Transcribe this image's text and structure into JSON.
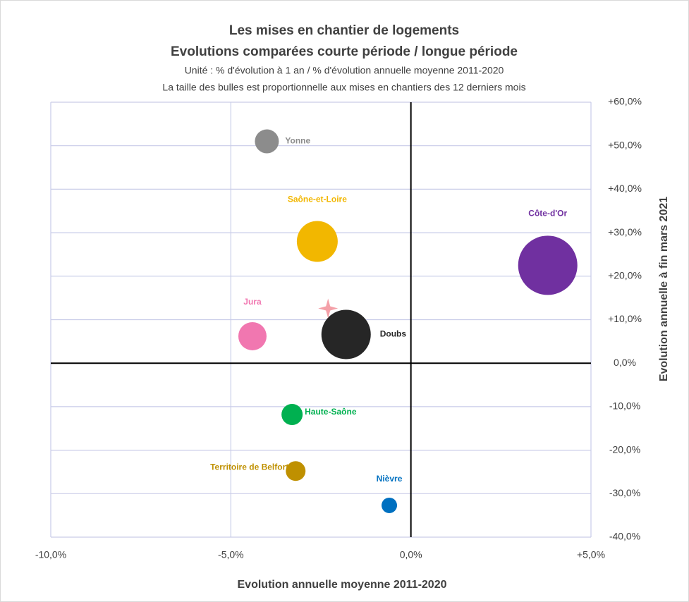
{
  "chart_data": {
    "type": "bubble",
    "title": "Les mises en chantier de logements",
    "subtitle": "Evolutions comparées courte période / longue période",
    "notes": [
      "Unité : % d'évolution à 1 an / % d'évolution annuelle moyenne 2011-2020",
      "La taille des bulles est proportionnelle aux mises en chantiers des 12 derniers mois"
    ],
    "x_label": "Evolution annuelle moyenne 2011-2020",
    "y_label": "Evolution annuelle à fin mars 2021",
    "xlim": [
      -10,
      5
    ],
    "ylim": [
      -40,
      60
    ],
    "xticks": [
      {
        "value": -10,
        "label": "-10,0%"
      },
      {
        "value": -5,
        "label": "-5,0%"
      },
      {
        "value": 0,
        "label": "0,0%"
      },
      {
        "value": 5,
        "label": "+5,0%"
      }
    ],
    "yticks": [
      {
        "value": -40,
        "label": "-40,0%"
      },
      {
        "value": -30,
        "label": "-30,0%"
      },
      {
        "value": -20,
        "label": "-20,0%"
      },
      {
        "value": -10,
        "label": "-10,0%"
      },
      {
        "value": 0,
        "label": "0,0%"
      },
      {
        "value": 10,
        "label": "+10,0%"
      },
      {
        "value": 20,
        "label": "+20,0%"
      },
      {
        "value": 30,
        "label": "+30,0%"
      },
      {
        "value": 40,
        "label": "+40,0%"
      },
      {
        "value": 50,
        "label": "+50,0%"
      },
      {
        "value": 60,
        "label": "+60,0%"
      }
    ],
    "grid": true,
    "series": [
      {
        "name": "Yonne",
        "color": "#8c8c8c",
        "x": [
          -4.0
        ],
        "values": [
          51
        ],
        "sizes": [
          289
        ]
      },
      {
        "name": "Saône-et-Loire",
        "color": "#f2b700",
        "x": [
          -2.6
        ],
        "values": [
          28
        ],
        "sizes": [
          841
        ]
      },
      {
        "name": "Côte-d'Or",
        "color": "#7030a0",
        "x": [
          3.8
        ],
        "values": [
          22.5
        ],
        "sizes": [
          1764
        ]
      },
      {
        "name": "Jura",
        "color": "#f177b0",
        "x": [
          -4.4
        ],
        "values": [
          6.2
        ],
        "sizes": [
          400
        ]
      },
      {
        "name": "Doubs",
        "color": "#262626",
        "x": [
          -1.8
        ],
        "values": [
          6.6
        ],
        "sizes": [
          1225
        ]
      },
      {
        "name": "Haute-Saône",
        "color": "#00b050",
        "x": [
          -3.3
        ],
        "values": [
          -11.8
        ],
        "sizes": [
          225
        ]
      },
      {
        "name": "Territoire de Belfort",
        "color": "#bf9000",
        "x": [
          -3.2
        ],
        "values": [
          -24.8
        ],
        "sizes": [
          196
        ]
      },
      {
        "name": "Nièvre",
        "color": "#0070c0",
        "x": [
          -0.6
        ],
        "values": [
          -32.7
        ],
        "sizes": [
          121
        ]
      }
    ],
    "marker": {
      "x": -2.3,
      "y": 12.6,
      "color": "#f4a0a8"
    }
  }
}
